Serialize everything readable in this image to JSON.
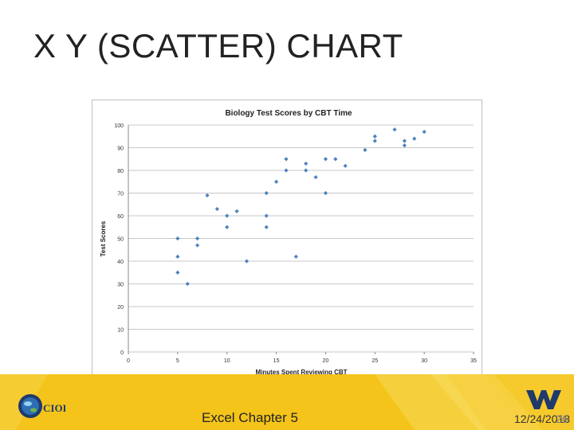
{
  "slide": {
    "title": "X Y (SCATTER) CHART",
    "footer_label": "Excel Chapter 5",
    "date": "12/24/2018",
    "page_number": "26",
    "logo_left_text": "CIOI"
  },
  "colors": {
    "footer_bg": "#f4c41a",
    "marker": "#4f81bd",
    "logo_blue": "#1f3a6b"
  },
  "icons": {
    "left_logo": "cs101-globe-logo",
    "right_logo": "wv-flying-logo"
  },
  "chart_data": {
    "type": "scatter",
    "title": "Biology Test Scores by CBT Time",
    "xlabel": "Minutes Spent Reviewing CBT",
    "ylabel": "Test Scores",
    "xlim": [
      0,
      35
    ],
    "ylim": [
      0,
      100
    ],
    "xticks": [
      0,
      5,
      10,
      15,
      20,
      25,
      30,
      35
    ],
    "yticks": [
      0,
      10,
      20,
      30,
      40,
      50,
      60,
      70,
      80,
      90,
      100
    ],
    "grid": true,
    "legend": "none",
    "points": [
      {
        "x": 5,
        "y": 50
      },
      {
        "x": 5,
        "y": 42
      },
      {
        "x": 5,
        "y": 35
      },
      {
        "x": 6,
        "y": 30
      },
      {
        "x": 7,
        "y": 50
      },
      {
        "x": 7,
        "y": 47
      },
      {
        "x": 8,
        "y": 69
      },
      {
        "x": 9,
        "y": 63
      },
      {
        "x": 10,
        "y": 60
      },
      {
        "x": 10,
        "y": 55
      },
      {
        "x": 11,
        "y": 62
      },
      {
        "x": 12,
        "y": 40
      },
      {
        "x": 14,
        "y": 70
      },
      {
        "x": 14,
        "y": 60
      },
      {
        "x": 14,
        "y": 55
      },
      {
        "x": 15,
        "y": 75
      },
      {
        "x": 16,
        "y": 85
      },
      {
        "x": 16,
        "y": 80
      },
      {
        "x": 17,
        "y": 42
      },
      {
        "x": 18,
        "y": 83
      },
      {
        "x": 18,
        "y": 80
      },
      {
        "x": 19,
        "y": 77
      },
      {
        "x": 20,
        "y": 85
      },
      {
        "x": 20,
        "y": 70
      },
      {
        "x": 21,
        "y": 85
      },
      {
        "x": 22,
        "y": 82
      },
      {
        "x": 24,
        "y": 89
      },
      {
        "x": 25,
        "y": 95
      },
      {
        "x": 25,
        "y": 93
      },
      {
        "x": 27,
        "y": 98
      },
      {
        "x": 28,
        "y": 93
      },
      {
        "x": 28,
        "y": 91
      },
      {
        "x": 29,
        "y": 94
      },
      {
        "x": 30,
        "y": 97
      }
    ]
  }
}
